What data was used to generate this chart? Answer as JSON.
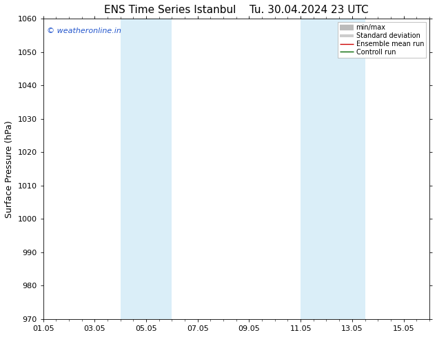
{
  "title1": "ENS Time Series Istanbul",
  "title2": "Tu. 30.04.2024 23 UTC",
  "ylabel": "Surface Pressure (hPa)",
  "ylim": [
    970,
    1060
  ],
  "yticks": [
    970,
    980,
    990,
    1000,
    1010,
    1020,
    1030,
    1040,
    1050,
    1060
  ],
  "xlim": [
    0,
    15
  ],
  "xtick_labels": [
    "01.05",
    "03.05",
    "05.05",
    "07.05",
    "09.05",
    "11.05",
    "13.05",
    "15.05"
  ],
  "xtick_positions": [
    0,
    2,
    4,
    6,
    8,
    10,
    12,
    14
  ],
  "shade_bands": [
    {
      "xmin": 3.0,
      "xmax": 5.0,
      "color": "#daeef8"
    },
    {
      "xmin": 10.0,
      "xmax": 12.5,
      "color": "#daeef8"
    }
  ],
  "watermark": "© weatheronline.in",
  "watermark_color": "#2255cc",
  "legend_items": [
    {
      "label": "min/max",
      "color": "#bbbbbb",
      "lw": 6
    },
    {
      "label": "Standard deviation",
      "color": "#cccccc",
      "lw": 3
    },
    {
      "label": "Ensemble mean run",
      "color": "#cc0000",
      "lw": 1
    },
    {
      "label": "Controll run",
      "color": "#006600",
      "lw": 1
    }
  ],
  "bg_color": "#ffffff",
  "plot_bg_color": "#ffffff",
  "border_color": "#000000",
  "title_fontsize": 11,
  "tick_fontsize": 8,
  "ylabel_fontsize": 9,
  "watermark_fontsize": 8,
  "legend_fontsize": 7
}
